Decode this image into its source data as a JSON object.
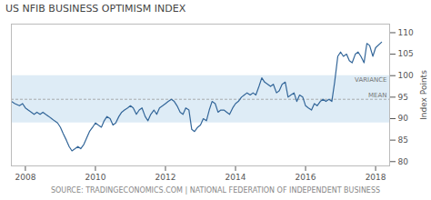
{
  "chart_data": {
    "type": "line",
    "title": "US NFIB BUSINESS OPTIMISM INDEX",
    "ylabel": "Index Points",
    "source": "SOURCE: TRADINGECONOMICS.COM | NATIONAL FEDERATION OF INDEPENDENT BUSINESS",
    "band_label": "VARIANCE",
    "mean_label": "MEAN",
    "mean": 94.5,
    "variance_upper": 100.0,
    "variance_lower": 89.0,
    "color": "#336699",
    "xlim": [
      2007.6,
      2018.4
    ],
    "xticks": [
      2008,
      2010,
      2012,
      2014,
      2016,
      2018
    ],
    "ylim": [
      79,
      112
    ],
    "yticks": [
      80,
      85,
      90,
      95,
      100,
      105,
      110
    ],
    "grid": false,
    "x": [
      2007.6,
      2007.7,
      2007.83,
      2007.92,
      2008.0,
      2008.08,
      2008.17,
      2008.25,
      2008.33,
      2008.42,
      2008.5,
      2008.58,
      2008.67,
      2008.75,
      2008.83,
      2008.92,
      2009.0,
      2009.08,
      2009.17,
      2009.25,
      2009.33,
      2009.42,
      2009.5,
      2009.58,
      2009.67,
      2009.75,
      2009.83,
      2009.92,
      2010.0,
      2010.08,
      2010.17,
      2010.25,
      2010.33,
      2010.42,
      2010.5,
      2010.58,
      2010.67,
      2010.75,
      2010.83,
      2010.92,
      2011.0,
      2011.08,
      2011.17,
      2011.25,
      2011.33,
      2011.42,
      2011.5,
      2011.58,
      2011.67,
      2011.75,
      2011.83,
      2011.92,
      2012.0,
      2012.08,
      2012.17,
      2012.25,
      2012.33,
      2012.42,
      2012.5,
      2012.58,
      2012.67,
      2012.75,
      2012.83,
      2012.92,
      2013.0,
      2013.08,
      2013.17,
      2013.25,
      2013.33,
      2013.42,
      2013.5,
      2013.58,
      2013.67,
      2013.75,
      2013.83,
      2013.92,
      2014.0,
      2014.08,
      2014.17,
      2014.25,
      2014.33,
      2014.42,
      2014.5,
      2014.58,
      2014.67,
      2014.75,
      2014.83,
      2014.92,
      2015.0,
      2015.08,
      2015.17,
      2015.25,
      2015.33,
      2015.42,
      2015.5,
      2015.58,
      2015.67,
      2015.75,
      2015.83,
      2015.92,
      2016.0,
      2016.08,
      2016.17,
      2016.25,
      2016.33,
      2016.42,
      2016.5,
      2016.58,
      2016.67,
      2016.75,
      2016.83,
      2016.92,
      2017.0,
      2017.08,
      2017.17,
      2017.25,
      2017.33,
      2017.42,
      2017.5,
      2017.58,
      2017.67,
      2017.75,
      2017.83,
      2017.92,
      2018.0,
      2018.17
    ],
    "values": [
      94.0,
      93.5,
      93.0,
      93.5,
      92.5,
      92.0,
      91.5,
      91.0,
      91.5,
      91.0,
      91.5,
      91.0,
      90.5,
      90.0,
      89.5,
      89.0,
      88.0,
      86.5,
      85.0,
      83.5,
      82.5,
      83.0,
      83.5,
      83.0,
      84.0,
      85.5,
      87.0,
      88.0,
      89.0,
      88.5,
      88.0,
      89.5,
      90.5,
      90.0,
      88.5,
      89.0,
      90.5,
      91.5,
      92.0,
      92.5,
      93.0,
      92.5,
      91.0,
      92.0,
      92.5,
      90.5,
      89.5,
      91.0,
      92.0,
      91.0,
      92.5,
      93.0,
      93.5,
      94.0,
      94.5,
      94.0,
      93.0,
      91.5,
      91.0,
      92.5,
      92.0,
      87.5,
      87.0,
      88.0,
      88.5,
      90.0,
      89.5,
      92.0,
      94.0,
      93.5,
      91.5,
      92.0,
      92.0,
      91.5,
      91.0,
      92.5,
      93.5,
      94.0,
      95.0,
      95.5,
      96.0,
      95.5,
      96.0,
      95.5,
      97.5,
      99.5,
      98.5,
      98.0,
      97.5,
      98.0,
      96.0,
      96.5,
      98.0,
      98.5,
      95.0,
      95.5,
      96.0,
      94.0,
      95.5,
      95.0,
      93.0,
      92.5,
      92.0,
      93.5,
      93.0,
      94.0,
      94.5,
      94.0,
      94.5,
      94.0,
      98.5,
      104.5,
      105.5,
      104.5,
      105.0,
      103.5,
      103.0,
      105.0,
      105.5,
      104.5,
      103.0,
      107.5,
      107.0,
      104.5,
      106.5,
      107.8
    ]
  }
}
